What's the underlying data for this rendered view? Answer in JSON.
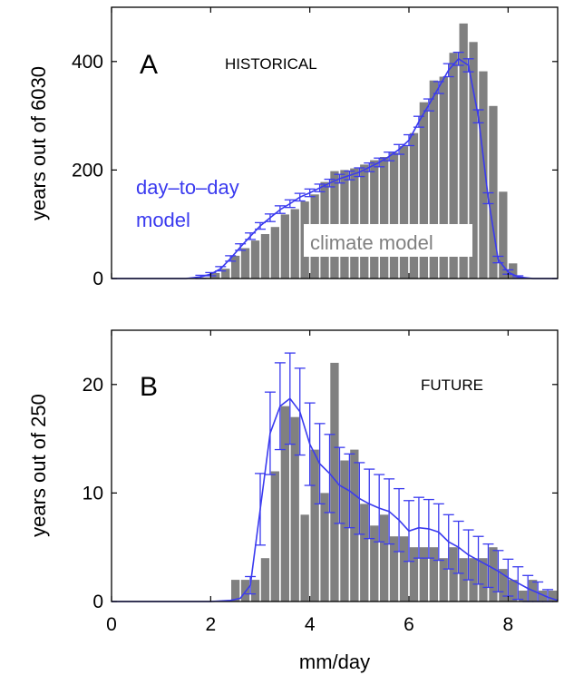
{
  "colors": {
    "bar": "#808080",
    "line": "#3a3aef",
    "axis": "#000000",
    "label_bg": "#ffffff"
  },
  "chart_data": [
    {
      "type": "bar",
      "panel": "A",
      "title": "HISTORICAL",
      "ylabel": "years out of 6030",
      "xlabel": "",
      "xlim": [
        0,
        9
      ],
      "ylim": [
        0,
        500
      ],
      "xticks": [
        "0",
        "2",
        "4",
        "6",
        "8"
      ],
      "yticks": [
        "0",
        "200",
        "400"
      ],
      "grid": false,
      "bin_width": 0.2,
      "series": [
        {
          "name": "climate model",
          "kind": "bars",
          "x": [
            1.8,
            2.0,
            2.2,
            2.4,
            2.6,
            2.8,
            3.0,
            3.2,
            3.4,
            3.6,
            3.8,
            4.0,
            4.2,
            4.4,
            4.6,
            4.8,
            5.0,
            5.2,
            5.4,
            5.6,
            5.8,
            6.0,
            6.2,
            6.4,
            6.6,
            6.8,
            7.0,
            7.2,
            7.4,
            7.6,
            7.8,
            8.0
          ],
          "values": [
            2,
            10,
            18,
            42,
            56,
            70,
            82,
            95,
            118,
            128,
            142,
            155,
            178,
            198,
            200,
            203,
            210,
            218,
            224,
            232,
            244,
            268,
            325,
            365,
            372,
            416,
            470,
            436,
            382,
            318,
            160,
            28
          ]
        },
        {
          "name": "day-to-day model",
          "kind": "line_with_errorbars",
          "x": [
            0,
            0.5,
            1.0,
            1.5,
            1.8,
            2.0,
            2.2,
            2.4,
            2.6,
            2.8,
            3.0,
            3.2,
            3.4,
            3.6,
            3.8,
            4.0,
            4.2,
            4.4,
            4.6,
            4.8,
            5.0,
            5.2,
            5.4,
            5.6,
            5.8,
            6.0,
            6.2,
            6.4,
            6.6,
            6.8,
            7.0,
            7.2,
            7.4,
            7.6,
            7.8,
            8.0,
            8.2,
            8.5,
            9.0
          ],
          "values": [
            0,
            0,
            0,
            0,
            3,
            8,
            18,
            37,
            58,
            78,
            97,
            112,
            127,
            138,
            150,
            158,
            167,
            176,
            184,
            190,
            196,
            205,
            214,
            225,
            238,
            255,
            289,
            320,
            352,
            384,
            405,
            393,
            299,
            148,
            35,
            12,
            3,
            0,
            0
          ],
          "error": [
            0,
            0,
            0,
            0,
            3,
            3,
            4,
            5,
            6,
            6,
            6,
            7,
            7,
            7,
            7,
            7,
            7,
            7,
            8,
            8,
            8,
            8,
            8,
            8,
            9,
            10,
            10,
            11,
            11,
            12,
            12,
            12,
            12,
            10,
            6,
            4,
            2,
            0,
            0
          ]
        }
      ],
      "annotations": {
        "line_label": [
          "day–to–day",
          "model"
        ],
        "bar_label": "climate model"
      }
    },
    {
      "type": "bar",
      "panel": "B",
      "title": "FUTURE",
      "ylabel": "years out of 250",
      "xlabel": "mm/day",
      "xlim": [
        0,
        9
      ],
      "ylim": [
        0,
        25
      ],
      "xticks": [
        "0",
        "2",
        "4",
        "6",
        "8"
      ],
      "yticks": [
        "0",
        "10",
        "20"
      ],
      "grid": false,
      "bin_width": 0.2,
      "series": [
        {
          "name": "climate model",
          "kind": "bars",
          "x": [
            2.4,
            2.6,
            2.8,
            3.0,
            3.2,
            3.4,
            3.6,
            3.8,
            4.0,
            4.2,
            4.4,
            4.6,
            4.8,
            5.0,
            5.2,
            5.4,
            5.6,
            5.8,
            6.0,
            6.2,
            6.4,
            6.6,
            6.8,
            7.0,
            7.2,
            7.4,
            7.6,
            7.8,
            8.0,
            8.2,
            8.4,
            8.6,
            8.8
          ],
          "values": [
            2,
            2,
            2,
            4,
            12,
            18,
            17,
            8,
            14,
            10,
            22,
            13,
            14,
            9,
            7,
            8,
            6,
            6,
            5,
            5,
            5,
            4,
            5,
            4,
            4,
            4,
            5,
            3,
            2,
            1,
            2,
            1,
            1
          ]
        },
        {
          "name": "day-to-day model",
          "kind": "line_with_errorbars",
          "x": [
            0,
            1.0,
            2.0,
            2.4,
            2.6,
            2.8,
            3.0,
            3.2,
            3.4,
            3.6,
            3.8,
            4.0,
            4.2,
            4.4,
            4.6,
            4.8,
            5.0,
            5.2,
            5.4,
            5.6,
            5.8,
            6.0,
            6.2,
            6.4,
            6.6,
            6.8,
            7.0,
            7.2,
            7.4,
            7.6,
            7.8,
            8.0,
            8.2,
            8.4,
            8.6,
            8.8,
            9.0
          ],
          "values": [
            0,
            0,
            0,
            0.1,
            0.3,
            1.5,
            8.5,
            15.5,
            18,
            18.7,
            17.5,
            14.5,
            12.7,
            11.8,
            10.7,
            10.2,
            9.5,
            9.0,
            8.6,
            8.3,
            7.5,
            6.5,
            6.8,
            6.7,
            6.4,
            5.5,
            5.0,
            4.3,
            3.8,
            3.3,
            2.8,
            2.2,
            1.7,
            1.2,
            0.8,
            0.4,
            0.1
          ],
          "error": [
            0,
            0,
            0,
            0,
            0,
            0.8,
            3.3,
            3.8,
            4.0,
            4.2,
            4.0,
            3.8,
            3.7,
            3.6,
            3.5,
            3.4,
            3.3,
            3.2,
            3.1,
            3.0,
            2.9,
            2.8,
            2.8,
            2.7,
            2.6,
            2.5,
            2.4,
            2.3,
            2.2,
            2.0,
            1.9,
            1.7,
            1.5,
            1.2,
            1.0,
            0.7,
            0
          ]
        }
      ]
    }
  ]
}
